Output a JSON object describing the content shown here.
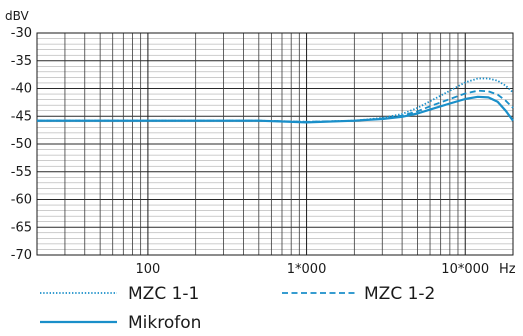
{
  "chart_data": {
    "type": "line",
    "title": "",
    "ylabel": "dBV",
    "xlabel": "",
    "x_unit": "Hz",
    "x_scale": "log",
    "xlim": [
      20,
      20000
    ],
    "ylim": [
      -70,
      -30
    ],
    "grid": true,
    "legend_position": "bottom",
    "y_ticks": [
      -30,
      -35,
      -40,
      -45,
      -50,
      -55,
      -60,
      -65,
      -70
    ],
    "y_tick_labels": [
      "-30",
      "-35",
      "-40",
      "-45",
      "-50",
      "-55",
      "-60",
      "-65",
      "-70"
    ],
    "x_ticks": [
      100,
      1000,
      10000
    ],
    "x_tick_labels": [
      "100",
      "1*000",
      "10*000"
    ],
    "line_color": "#1a8fc9",
    "series": [
      {
        "name": "MZC 1-1",
        "style": "dotted",
        "x": [
          20,
          100,
          500,
          1000,
          2000,
          3000,
          4000,
          5000,
          6000,
          8000,
          10000,
          12000,
          14000,
          16000,
          18000,
          20000
        ],
        "y": [
          -45.8,
          -45.8,
          -45.8,
          -46.0,
          -45.8,
          -45.3,
          -44.6,
          -43.5,
          -42.3,
          -40.4,
          -38.9,
          -38.2,
          -38.2,
          -38.6,
          -39.5,
          -40.7
        ]
      },
      {
        "name": "MZC 1-2",
        "style": "dashed",
        "x": [
          20,
          100,
          500,
          1000,
          2000,
          3000,
          4000,
          5000,
          6000,
          8000,
          10000,
          12000,
          14000,
          16000,
          18000,
          20000
        ],
        "y": [
          -45.8,
          -45.8,
          -45.8,
          -46.0,
          -45.8,
          -45.4,
          -44.9,
          -44.1,
          -43.2,
          -41.9,
          -40.9,
          -40.4,
          -40.5,
          -41.1,
          -42.2,
          -43.5
        ]
      },
      {
        "name": "Mikrofon",
        "style": "solid",
        "x": [
          20,
          100,
          500,
          1000,
          2000,
          3000,
          4000,
          5000,
          6000,
          8000,
          10000,
          12000,
          14000,
          16000,
          18000,
          20000
        ],
        "y": [
          -45.8,
          -45.8,
          -45.8,
          -46.1,
          -45.8,
          -45.5,
          -45.1,
          -44.5,
          -43.8,
          -42.7,
          -41.9,
          -41.5,
          -41.6,
          -42.4,
          -44.0,
          -45.8
        ]
      }
    ]
  }
}
